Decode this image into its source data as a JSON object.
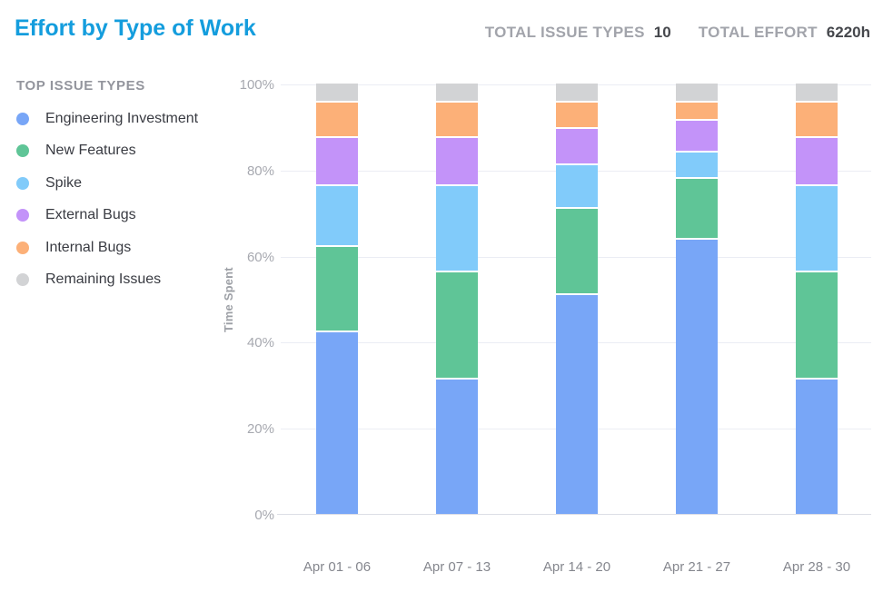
{
  "header": {
    "title": "Effort by Type of Work",
    "stats": [
      {
        "label": "TOTAL ISSUE TYPES",
        "value": "10"
      },
      {
        "label": "TOTAL EFFORT",
        "value": "6220h"
      }
    ]
  },
  "legend": {
    "title": "TOP ISSUE TYPES"
  },
  "colors": {
    "title_accent": "#149DDD",
    "gridline": "#EBEDF4",
    "axis_line": "#DCDEE6"
  },
  "chart_data": {
    "type": "bar",
    "stacked": true,
    "unit": "percent",
    "title": "Effort by Type of Work",
    "ylabel": "Time Spent",
    "xlabel": "",
    "ylim": [
      0,
      100
    ],
    "yticks": [
      "0%",
      "20%",
      "40%",
      "60%",
      "80%",
      "100%"
    ],
    "grid": true,
    "legend_position": "left",
    "categories": [
      "Apr 01 - 06",
      "Apr 07 - 13",
      "Apr 14 - 20",
      "Apr 21 - 27",
      "Apr 28 - 30"
    ],
    "series": [
      {
        "name": "Engineering Investment",
        "color": "#78A6F7",
        "values": [
          43,
          32,
          52,
          65,
          32
        ]
      },
      {
        "name": "New Features",
        "color": "#5FC597",
        "values": [
          20,
          25,
          20,
          14,
          25
        ]
      },
      {
        "name": "Spike",
        "color": "#81CBFA",
        "values": [
          14,
          20,
          10,
          6,
          20
        ]
      },
      {
        "name": "External Bugs",
        "color": "#C393F9",
        "values": [
          11,
          11,
          8,
          7,
          11
        ]
      },
      {
        "name": "Internal Bugs",
        "color": "#FCB078",
        "values": [
          8,
          8,
          6,
          4,
          8
        ]
      },
      {
        "name": "Remaining Issues",
        "color": "#D2D3D5",
        "values": [
          4,
          4,
          4,
          4,
          4
        ]
      }
    ]
  }
}
